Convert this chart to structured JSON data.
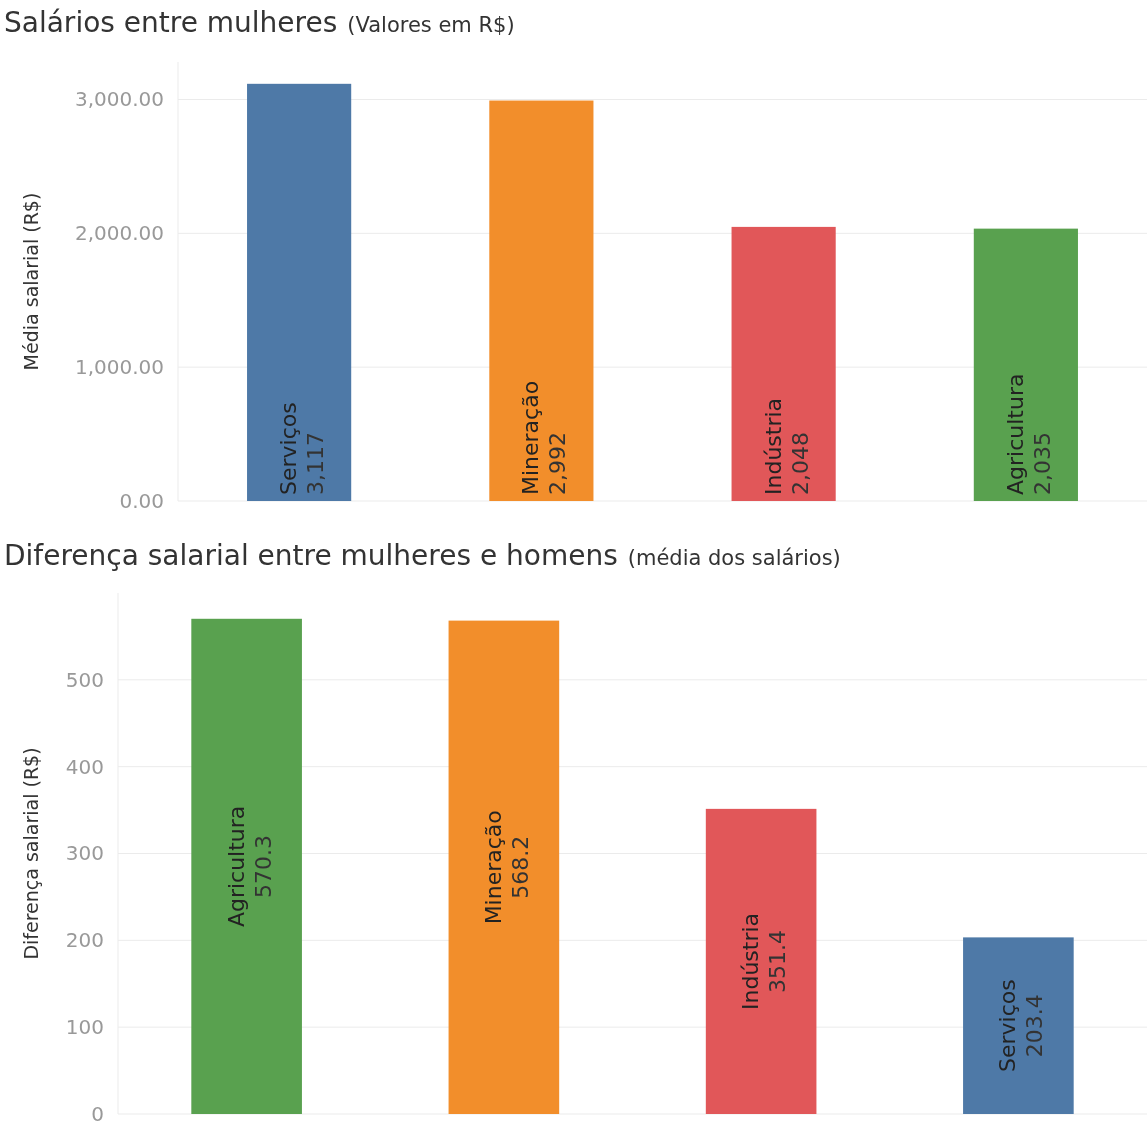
{
  "chart_data": [
    {
      "type": "bar",
      "title": "Salários entre mulheres",
      "subtitle": "(Valores em R$)",
      "ylabel": "Média salarial (R$)",
      "categories": [
        "Serviços",
        "Mineração",
        "Indústria",
        "Agricultura"
      ],
      "values": [
        3117,
        2992,
        2048,
        2035
      ],
      "colors": [
        "#4e79a7",
        "#f28e2b",
        "#e15759",
        "#59a14f"
      ],
      "ylim": [
        0,
        3280
      ],
      "yticks": [
        {
          "value": 0,
          "label": "0.00"
        },
        {
          "value": 1000,
          "label": "1,000.00"
        },
        {
          "value": 2000,
          "label": "2,000.00"
        },
        {
          "value": 3000,
          "label": "3,000.00"
        }
      ],
      "value_labels": [
        "3,117",
        "2,992",
        "2,048",
        "2,035"
      ],
      "grid": "y",
      "tick_labels": "y"
    },
    {
      "type": "bar",
      "title": "Diferença salarial entre mulheres e homens",
      "subtitle": "(média dos salários)",
      "ylabel": "Diferença salarial (R$)",
      "categories": [
        "Agricultura",
        "Mineração",
        "Indústria",
        "Serviços"
      ],
      "values": [
        570.3,
        568.2,
        351.4,
        203.4
      ],
      "colors": [
        "#59a14f",
        "#f28e2b",
        "#e15759",
        "#4e79a7"
      ],
      "ylim": [
        0,
        600
      ],
      "yticks": [
        0,
        100,
        200,
        300,
        400,
        500
      ],
      "data_labels": true,
      "grid": "y",
      "tick_labels": "y"
    }
  ]
}
